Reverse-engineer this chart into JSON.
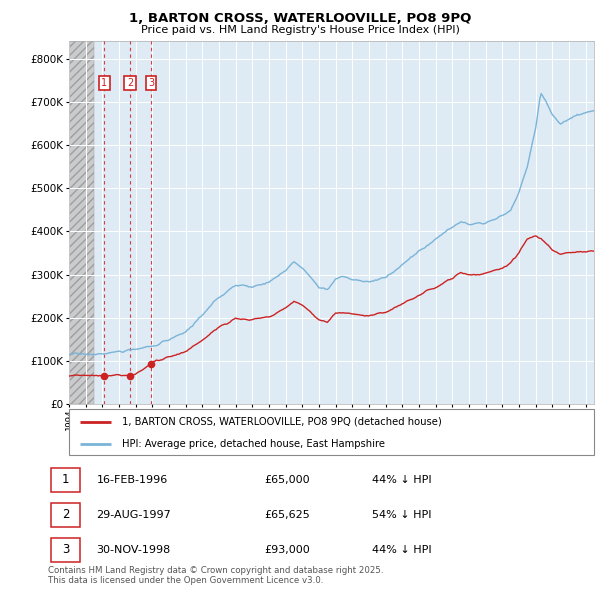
{
  "title": "1, BARTON CROSS, WATERLOOVILLE, PO8 9PQ",
  "subtitle": "Price paid vs. HM Land Registry's House Price Index (HPI)",
  "hpi_color": "#7ab4d8",
  "price_color": "#cc2222",
  "background_chart": "#deeaf4",
  "ylim": [
    0,
    840000
  ],
  "yticks": [
    0,
    100000,
    200000,
    300000,
    400000,
    500000,
    600000,
    700000,
    800000
  ],
  "ytick_labels": [
    "£0",
    "£100K",
    "£200K",
    "£300K",
    "£400K",
    "£500K",
    "£600K",
    "£700K",
    "£800K"
  ],
  "xlim_start": 1994.0,
  "xlim_end": 2025.5,
  "hatch_end": 1995.5,
  "purchases": [
    {
      "label": "1",
      "date": 1996.12,
      "price": 65000,
      "date_str": "16-FEB-1996",
      "price_str": "£65,000",
      "pct": "44%"
    },
    {
      "label": "2",
      "date": 1997.66,
      "price": 65625,
      "date_str": "29-AUG-1997",
      "price_str": "£65,625",
      "pct": "54%"
    },
    {
      "label": "3",
      "date": 1998.92,
      "price": 93000,
      "date_str": "30-NOV-1998",
      "price_str": "£93,000",
      "pct": "44%"
    }
  ],
  "legend_line1": "1, BARTON CROSS, WATERLOOVILLE, PO8 9PQ (detached house)",
  "legend_line2": "HPI: Average price, detached house, East Hampshire",
  "footnote1": "Contains HM Land Registry data © Crown copyright and database right 2025.",
  "footnote2": "This data is licensed under the Open Government Licence v3.0."
}
